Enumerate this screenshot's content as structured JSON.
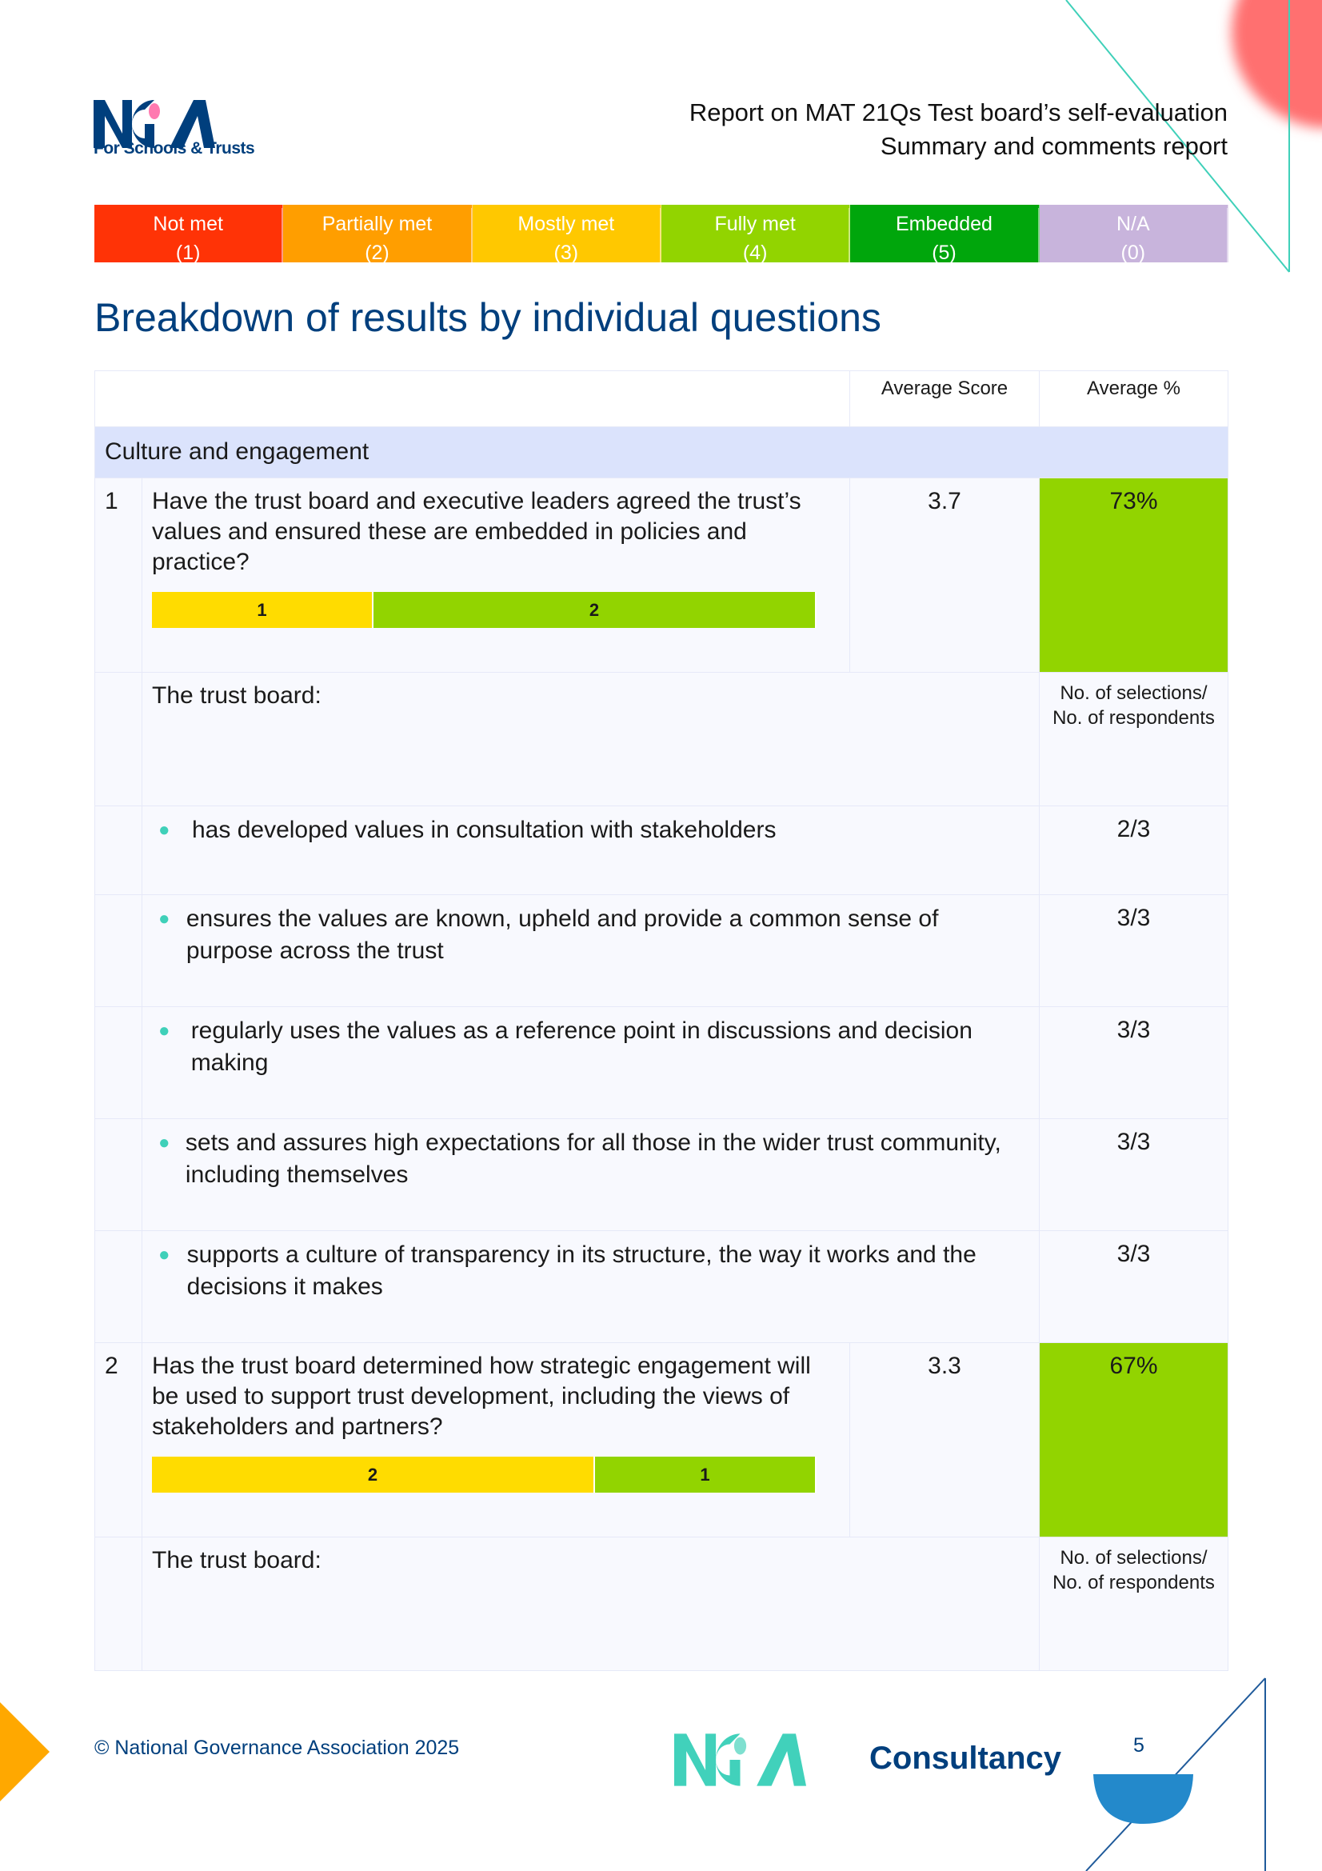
{
  "header": {
    "logo_subtitle": "For Schools & Trusts",
    "line1": "Report on MAT 21Qs Test board’s self-evaluation",
    "line2": "Summary and comments report"
  },
  "legend": [
    {
      "label": "Not met",
      "value": "(1)",
      "color": "#ff3306"
    },
    {
      "label": "Partially met",
      "value": "(2)",
      "color": "#ff9e00"
    },
    {
      "label": "Mostly met",
      "value": "(3)",
      "color": "#ffc800"
    },
    {
      "label": "Fully met",
      "value": "(4)",
      "color": "#92d400"
    },
    {
      "label": "Embedded",
      "value": "(5)",
      "color": "#00a60c"
    },
    {
      "label": "N/A",
      "value": "(0)",
      "color": "#c8b4dc"
    }
  ],
  "title": "Breakdown of results by individual questions",
  "table": {
    "col_score": "Average Score",
    "col_pct": "Average %",
    "section": "Culture and engagement",
    "board_label": "The trust board:",
    "count_header": "No. of selections/ No. of respondents",
    "questions": [
      {
        "num": "1",
        "text": "Have the trust board and executive leaders agreed the trust’s values and ensured these are embedded in policies and practice?",
        "score": "3.7",
        "pct": "73%",
        "bar": [
          {
            "count": "1",
            "level": 3,
            "color": "#ffdc00"
          },
          {
            "count": "2",
            "level": 4,
            "color": "#92d400"
          }
        ],
        "items": [
          {
            "text": "has developed values in consultation with stakeholders",
            "count": "2/3"
          },
          {
            "text": "ensures the values are known, upheld and provide a common sense of purpose across the trust",
            "count": "3/3"
          },
          {
            "text": "regularly uses the values as a reference point in discussions and decision making",
            "count": "3/3"
          },
          {
            "text": "sets and assures high expectations for all those in the wider trust community, including themselves",
            "count": "3/3"
          },
          {
            "text": "supports a culture of transparency in its structure, the way it works and the decisions it makes",
            "count": "3/3"
          }
        ]
      },
      {
        "num": "2",
        "text": "Has the trust board determined how strategic engagement will be used to support trust development, including the views of stakeholders and partners?",
        "score": "3.3",
        "pct": "67%",
        "bar": [
          {
            "count": "2",
            "level": 3,
            "color": "#ffdc00"
          },
          {
            "count": "1",
            "level": 4,
            "color": "#92d400"
          }
        ]
      }
    ]
  },
  "footer": {
    "copyright": "© National Governance Association 2025",
    "brand": "Consultancy",
    "page": "5"
  }
}
